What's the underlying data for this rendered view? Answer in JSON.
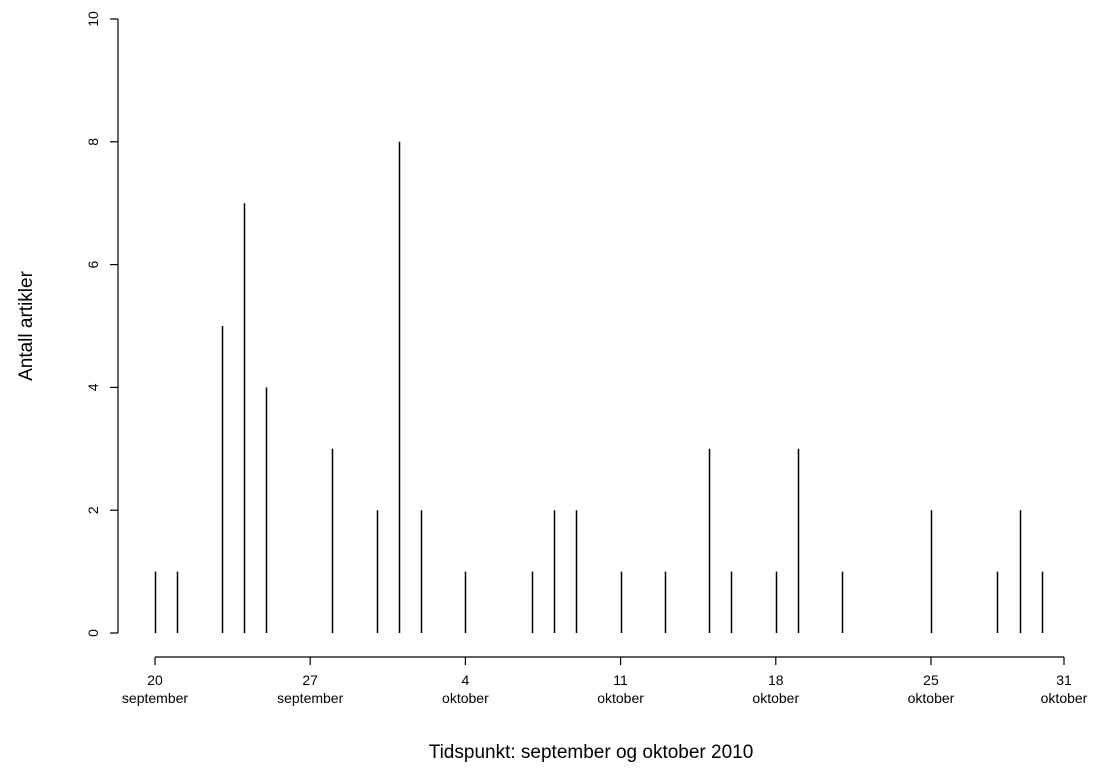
{
  "chart_data": {
    "type": "bar",
    "style": "histogram-spikes",
    "xlabel": "Tidspunkt: september og oktober 2010",
    "ylabel": "Antall artikler",
    "ylim": [
      0,
      10
    ],
    "xlim": [
      "2010-09-20",
      "2010-10-31"
    ],
    "yticks": [
      0,
      2,
      4,
      6,
      8,
      10
    ],
    "xticks": [
      {
        "date": "2010-09-20",
        "day": "20",
        "month": "september"
      },
      {
        "date": "2010-09-27",
        "day": "27",
        "month": "september"
      },
      {
        "date": "2010-10-04",
        "day": "4",
        "month": "oktober"
      },
      {
        "date": "2010-10-11",
        "day": "11",
        "month": "oktober"
      },
      {
        "date": "2010-10-18",
        "day": "18",
        "month": "oktober"
      },
      {
        "date": "2010-10-25",
        "day": "25",
        "month": "oktober"
      },
      {
        "date": "2010-10-31",
        "day": "31",
        "month": "oktober"
      }
    ],
    "points": [
      {
        "x": "2010-09-20",
        "y": 1
      },
      {
        "x": "2010-09-21",
        "y": 1
      },
      {
        "x": "2010-09-23",
        "y": 5
      },
      {
        "x": "2010-09-24",
        "y": 7
      },
      {
        "x": "2010-09-25",
        "y": 4
      },
      {
        "x": "2010-09-28",
        "y": 3
      },
      {
        "x": "2010-09-30",
        "y": 2
      },
      {
        "x": "2010-10-01",
        "y": 8
      },
      {
        "x": "2010-10-02",
        "y": 2
      },
      {
        "x": "2010-10-04",
        "y": 1
      },
      {
        "x": "2010-10-07",
        "y": 1
      },
      {
        "x": "2010-10-08",
        "y": 2
      },
      {
        "x": "2010-10-09",
        "y": 2
      },
      {
        "x": "2010-10-11",
        "y": 1
      },
      {
        "x": "2010-10-13",
        "y": 1
      },
      {
        "x": "2010-10-15",
        "y": 3
      },
      {
        "x": "2010-10-16",
        "y": 1
      },
      {
        "x": "2010-10-18",
        "y": 1
      },
      {
        "x": "2010-10-19",
        "y": 3
      },
      {
        "x": "2010-10-21",
        "y": 1
      },
      {
        "x": "2010-10-25",
        "y": 2
      },
      {
        "x": "2010-10-28",
        "y": 1
      },
      {
        "x": "2010-10-29",
        "y": 2
      },
      {
        "x": "2010-10-30",
        "y": 1
      }
    ]
  }
}
